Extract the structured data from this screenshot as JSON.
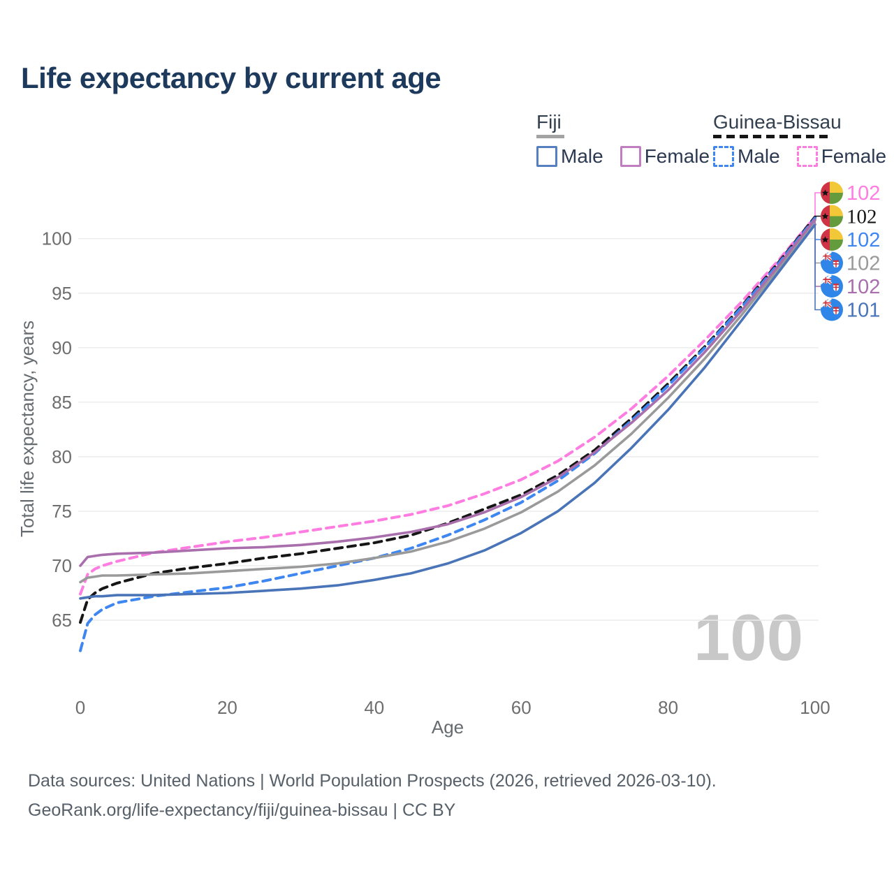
{
  "title": "Life expectancy by current age",
  "watermark": "100",
  "legend": {
    "groups": [
      {
        "name": "Fiji",
        "line_style": "solid",
        "underline_color": "#a3a3a3",
        "underline_width": 40,
        "items": [
          {
            "label": "Male",
            "color": "#557fbe"
          },
          {
            "label": "Female",
            "color": "#c07ec0"
          }
        ]
      },
      {
        "name": "Guinea-Bissau",
        "line_style": "dashed",
        "underline_color": "#161616",
        "underline_width": 167,
        "items": [
          {
            "label": "Male",
            "color": "#3f86ef"
          },
          {
            "label": "Female",
            "color": "#ff7ce1"
          }
        ]
      }
    ]
  },
  "footer": {
    "line1": "Data sources: United Nations | World Population Prospects (2026, retrieved 2026-03-10).",
    "line2": "GeoRank.org/life-expectancy/fiji/guinea-bissau | CC BY"
  },
  "chart_data": {
    "type": "line",
    "title": "Life expectancy by current age",
    "xlabel": "Age",
    "ylabel": "Total life expectancy, years",
    "xlim": [
      0,
      100
    ],
    "ylim": [
      61,
      103
    ],
    "x_ticks": [
      0,
      20,
      40,
      60,
      80,
      100
    ],
    "y_ticks": [
      65,
      70,
      75,
      80,
      85,
      90,
      95,
      100
    ],
    "grid": "horizontal-only",
    "legend_position": "top-right",
    "ages": [
      0,
      1,
      2,
      3,
      5,
      10,
      15,
      20,
      25,
      30,
      35,
      40,
      45,
      50,
      55,
      60,
      65,
      70,
      75,
      80,
      85,
      90,
      95,
      100
    ],
    "series": [
      {
        "country": "Guinea-Bissau",
        "sex": "Female",
        "style": "dashed",
        "color": "#ff7ce1",
        "flag": "guinea-bissau",
        "end_label": "102",
        "end_label_serif": false,
        "values": [
          67.4,
          69.2,
          69.7,
          70.0,
          70.4,
          71.2,
          71.7,
          72.2,
          72.6,
          73.1,
          73.6,
          74.1,
          74.7,
          75.5,
          76.6,
          77.9,
          79.6,
          81.8,
          84.4,
          87.4,
          90.7,
          94.2,
          98.0,
          102.0
        ]
      },
      {
        "country": "Guinea-Bissau",
        "sex": "Both sexes",
        "style": "dashed",
        "color": "#161616",
        "flag": "guinea-bissau",
        "end_label": "102",
        "end_label_serif": true,
        "values": [
          64.8,
          66.9,
          67.5,
          67.9,
          68.4,
          69.3,
          69.8,
          70.2,
          70.7,
          71.1,
          71.6,
          72.1,
          72.8,
          73.9,
          75.2,
          76.5,
          78.3,
          80.6,
          83.5,
          86.7,
          90.1,
          93.8,
          97.8,
          102.0
        ]
      },
      {
        "country": "Guinea-Bissau",
        "sex": "Male",
        "style": "dashed",
        "color": "#3e86f0",
        "flag": "guinea-bissau",
        "end_label": "102",
        "end_label_serif": false,
        "values": [
          62.2,
          64.7,
          65.5,
          66.0,
          66.6,
          67.2,
          67.6,
          68.0,
          68.6,
          69.3,
          70.0,
          70.7,
          71.6,
          72.8,
          74.2,
          75.8,
          77.8,
          80.3,
          83.3,
          86.5,
          90.0,
          93.7,
          97.7,
          101.9
        ]
      },
      {
        "country": "Fiji",
        "sex": "Both sexes",
        "style": "solid",
        "color": "#9a9a9a",
        "flag": "fiji",
        "end_label": "102",
        "end_label_serif": false,
        "values": [
          68.5,
          68.9,
          69.0,
          69.1,
          69.1,
          69.2,
          69.3,
          69.5,
          69.7,
          69.9,
          70.2,
          70.7,
          71.3,
          72.2,
          73.4,
          74.9,
          76.8,
          79.2,
          82.1,
          85.4,
          89.0,
          93.0,
          97.2,
          101.7
        ]
      },
      {
        "country": "Fiji",
        "sex": "Female",
        "style": "solid",
        "color": "#a96fac",
        "flag": "fiji",
        "end_label": "102",
        "end_label_serif": false,
        "values": [
          70.0,
          70.8,
          70.9,
          71.0,
          71.1,
          71.2,
          71.4,
          71.6,
          71.7,
          71.9,
          72.2,
          72.6,
          73.1,
          73.8,
          74.9,
          76.3,
          78.1,
          80.4,
          83.1,
          86.1,
          89.6,
          93.4,
          97.5,
          101.8
        ]
      },
      {
        "country": "Fiji",
        "sex": "Male",
        "style": "solid",
        "color": "#4a74b8",
        "flag": "fiji",
        "end_label": "101",
        "end_label_serif": false,
        "values": [
          67.0,
          67.1,
          67.2,
          67.2,
          67.3,
          67.3,
          67.4,
          67.5,
          67.7,
          67.9,
          68.2,
          68.7,
          69.3,
          70.2,
          71.4,
          73.0,
          75.0,
          77.6,
          80.8,
          84.3,
          88.2,
          92.5,
          96.9,
          101.3
        ]
      }
    ]
  }
}
